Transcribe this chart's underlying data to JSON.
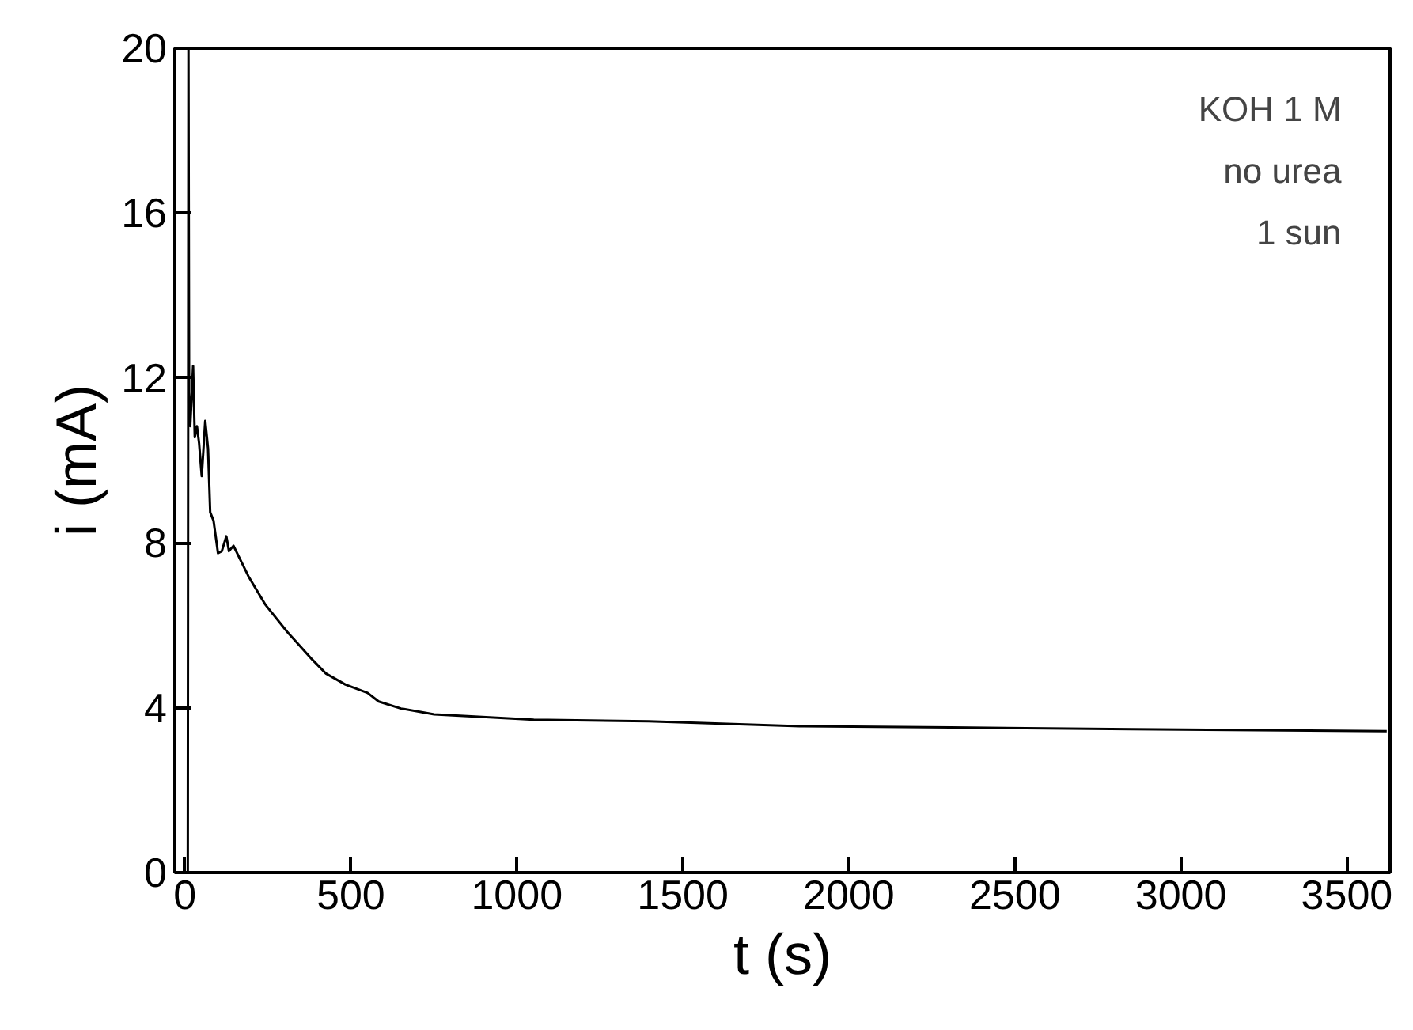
{
  "chart_data": {
    "type": "line",
    "xlabel": "t (s)",
    "ylabel": "i (mA)",
    "annotations": [
      "KOH 1 M",
      "no urea",
      "1 sun"
    ],
    "xlim": [
      -30,
      3630
    ],
    "ylim": [
      0,
      20
    ],
    "xticks": [
      0,
      500,
      1000,
      1500,
      2000,
      2500,
      3000,
      3500
    ],
    "yticks": [
      0,
      4,
      8,
      12,
      16,
      20
    ],
    "grid": false,
    "marker": "none",
    "line_style": "solid",
    "series": [
      {
        "color": "#000000",
        "x": [
          9,
          11,
          13,
          16.4,
          25,
          30,
          36.5,
          43,
          51,
          61.5,
          70,
          76.5,
          86.5,
          100,
          111.5,
          125,
          133,
          146.6,
          191.6,
          241.8,
          308.5,
          383.6,
          425,
          484,
          550.6,
          584,
          651,
          751,
          884.6,
          1051,
          1397,
          1852,
          2307,
          2853,
          3620
        ],
        "values": [
          0,
          20,
          11.64,
          10.83,
          12.29,
          10.56,
          10.83,
          10.42,
          9.62,
          10.96,
          10.29,
          8.74,
          8.54,
          7.75,
          7.8,
          8.16,
          7.8,
          7.93,
          7.19,
          6.51,
          5.84,
          5.17,
          4.83,
          4.56,
          4.36,
          4.15,
          3.98,
          3.84,
          3.78,
          3.71,
          3.67,
          3.55,
          3.52,
          3.48,
          3.43
        ]
      }
    ]
  }
}
